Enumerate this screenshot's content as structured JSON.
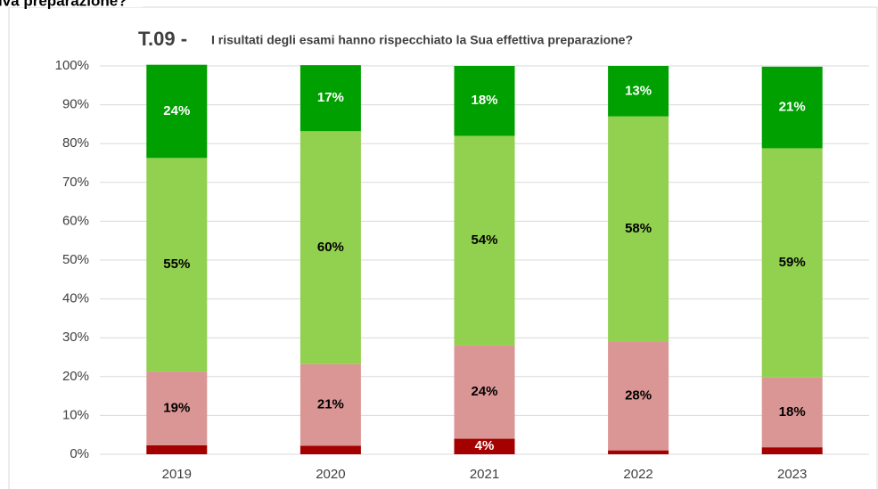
{
  "header": "iva preparazione?",
  "chart_data": {
    "type": "stacked_bar",
    "title": "T.09 -",
    "subtitle": "I risultati degli esami hanno rispecchiato la Sua effettiva preparazione?",
    "categories": [
      "2019",
      "2020",
      "2021",
      "2022",
      "2023"
    ],
    "series": [
      {
        "color": "#a50000",
        "label_color": "#ffffff",
        "values": [
          2.3,
          2.2,
          4,
          1,
          1.8
        ],
        "value_labels": [
          null,
          null,
          "4%",
          null,
          null
        ]
      },
      {
        "color": "#da9694",
        "label_color": "#000000",
        "values": [
          19,
          21,
          24,
          28,
          18
        ],
        "value_labels": [
          "19%",
          "21%",
          "24%",
          "28%",
          "18%"
        ]
      },
      {
        "color": "#92d050",
        "label_color": "#000000",
        "values": [
          55,
          60,
          54,
          58,
          59
        ],
        "value_labels": [
          "55%",
          "60%",
          "54%",
          "58%",
          "59%"
        ]
      },
      {
        "color": "#00a000",
        "label_color": "#ffffff",
        "values": [
          24,
          17,
          18,
          13,
          21
        ],
        "value_labels": [
          "24%",
          "17%",
          "18%",
          "13%",
          "21%"
        ]
      }
    ],
    "ylim": [
      0,
      100
    ],
    "yticks": [
      {
        "value": 0,
        "label": "0%"
      },
      {
        "value": 10,
        "label": "10%"
      },
      {
        "value": 20,
        "label": "20%"
      },
      {
        "value": 30,
        "label": "30%"
      },
      {
        "value": 40,
        "label": "40%"
      },
      {
        "value": 50,
        "label": "50%"
      },
      {
        "value": 60,
        "label": "60%"
      },
      {
        "value": 70,
        "label": "70%"
      },
      {
        "value": 80,
        "label": "80%"
      },
      {
        "value": 90,
        "label": "90%"
      },
      {
        "value": 100,
        "label": "100%"
      }
    ],
    "grid": true
  }
}
